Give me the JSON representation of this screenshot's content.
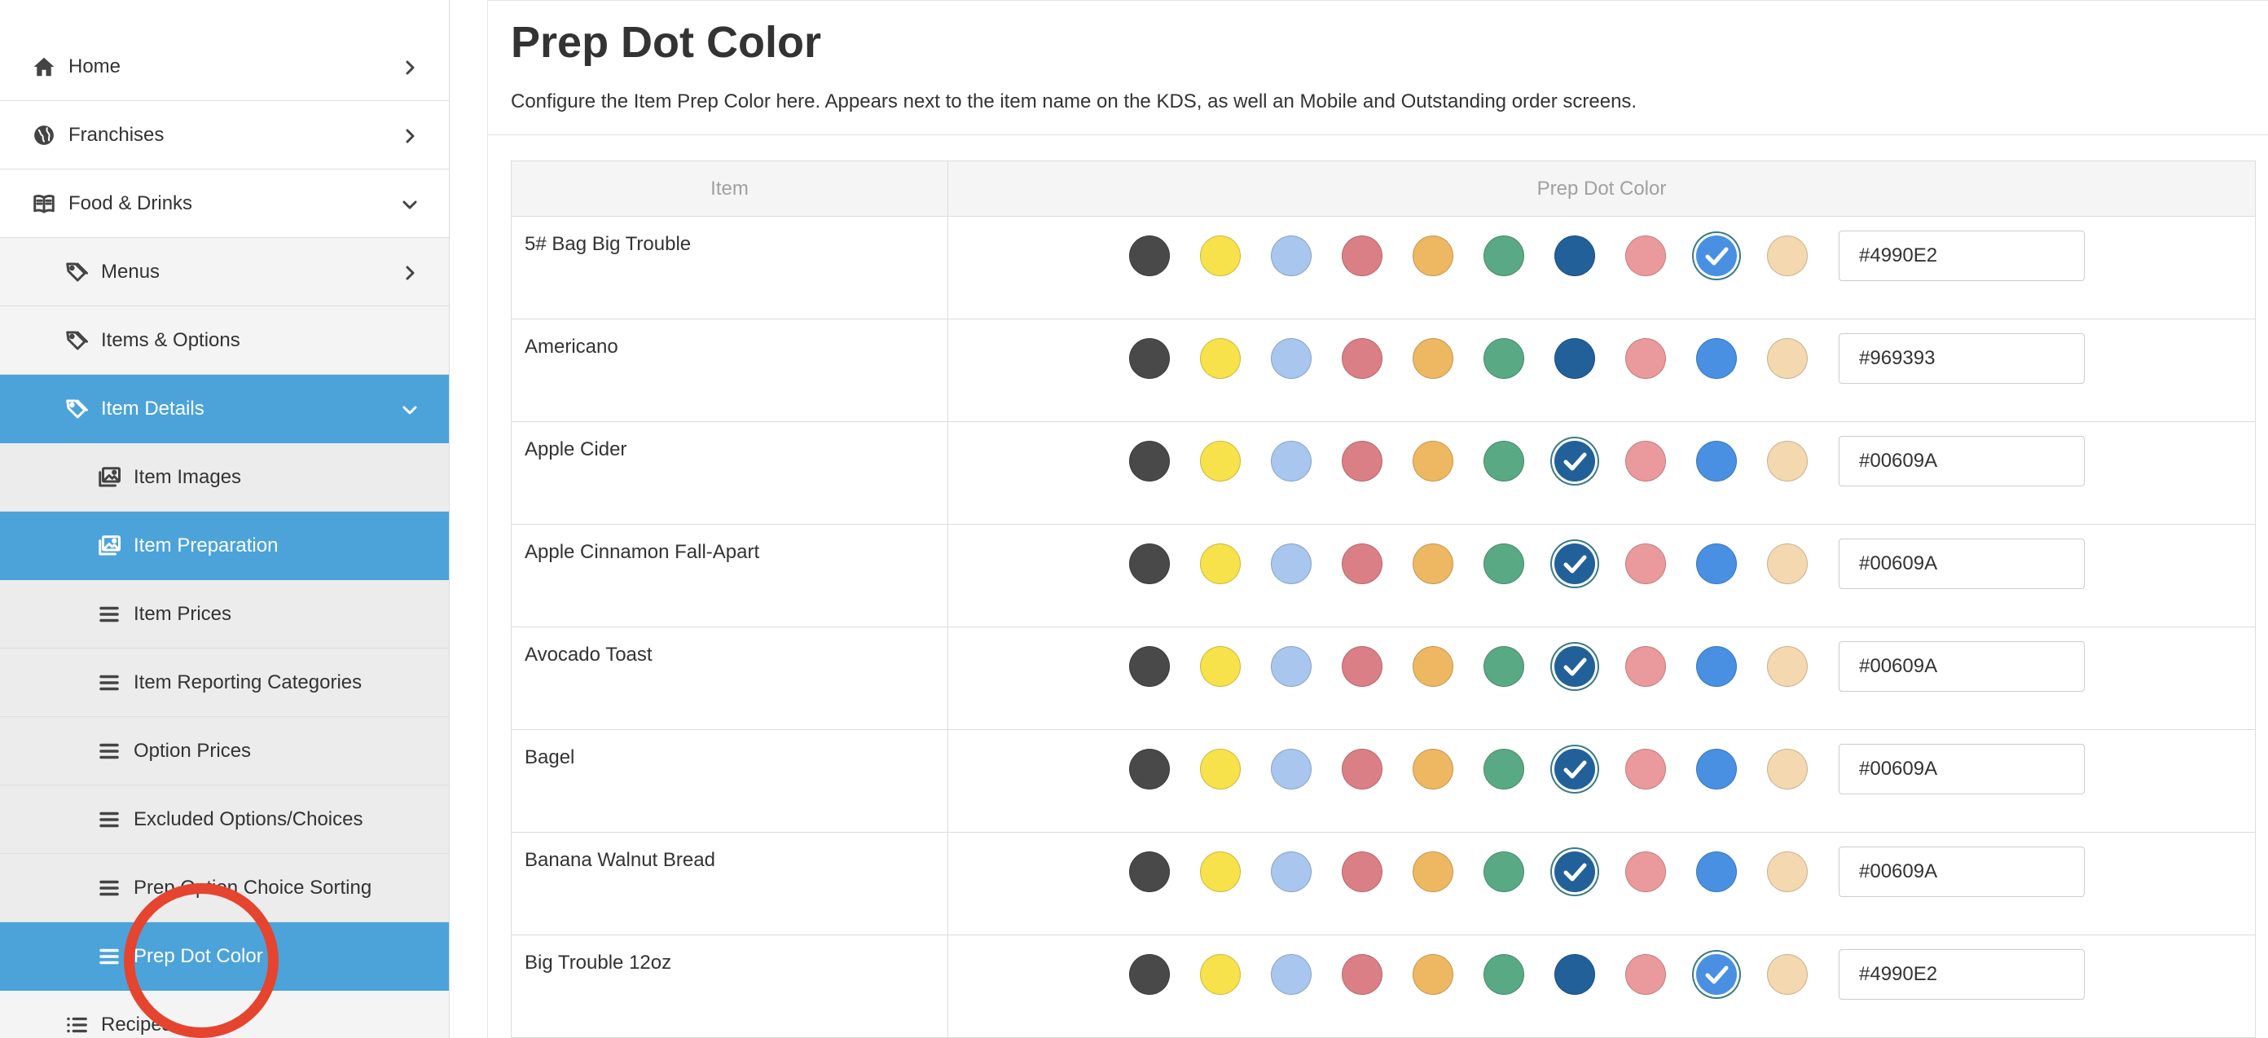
{
  "sidebar": {
    "items": [
      {
        "label": "Home",
        "level": 0,
        "icon": "home-icon",
        "chevron": "right",
        "active": false
      },
      {
        "label": "Franchises",
        "level": 0,
        "icon": "globe-icon",
        "chevron": "right",
        "active": false
      },
      {
        "label": "Food & Drinks",
        "level": 0,
        "icon": "book-icon",
        "chevron": "down",
        "active": false
      },
      {
        "label": "Menus",
        "level": 1,
        "icon": "tags-icon",
        "chevron": "right",
        "active": false
      },
      {
        "label": "Items & Options",
        "level": 1,
        "icon": "tags-icon",
        "chevron": "",
        "active": false
      },
      {
        "label": "Item Details",
        "level": 1,
        "icon": "tags-icon",
        "chevron": "down",
        "active": true
      },
      {
        "label": "Item Images",
        "level": 2,
        "icon": "images-icon",
        "chevron": "",
        "active": false
      },
      {
        "label": "Item Preparation",
        "level": 2,
        "icon": "images-icon",
        "chevron": "",
        "active": true
      },
      {
        "label": "Item Prices",
        "level": 2,
        "icon": "list-icon",
        "chevron": "",
        "active": false
      },
      {
        "label": "Item Reporting Categories",
        "level": 2,
        "icon": "list-icon",
        "chevron": "",
        "active": false
      },
      {
        "label": "Option Prices",
        "level": 2,
        "icon": "list-icon",
        "chevron": "",
        "active": false
      },
      {
        "label": "Excluded Options/Choices",
        "level": 2,
        "icon": "list-icon",
        "chevron": "",
        "active": false
      },
      {
        "label": "Prep Option Choice Sorting",
        "level": 2,
        "icon": "list-icon",
        "chevron": "",
        "active": false
      },
      {
        "label": "Prep Dot Color",
        "level": 2,
        "icon": "list-icon",
        "chevron": "",
        "active": true
      },
      {
        "label": "Recipes",
        "level": 1,
        "icon": "list-ul-icon",
        "chevron": "",
        "active": false
      }
    ]
  },
  "main": {
    "title": "Prep Dot Color",
    "description": "Configure the Item Prep Color here. Appears next to the item name on the KDS, as well an Mobile and Outstanding order screens.",
    "table": {
      "headers": {
        "item": "Item",
        "color": "Prep Dot Color"
      },
      "palette": [
        "#494949",
        "#F7E24B",
        "#A9C6EF",
        "#DB7F86",
        "#EEB863",
        "#59A985",
        "#22609A",
        "#EA9A9C",
        "#4990E2",
        "#F4D8AF"
      ],
      "rows": [
        {
          "item": "5# Bag Big Trouble",
          "value": "#4990E2",
          "selected_index": 8
        },
        {
          "item": "Americano",
          "value": "#969393",
          "selected_index": -1
        },
        {
          "item": "Apple Cider",
          "value": "#00609A",
          "selected_index": 6
        },
        {
          "item": "Apple Cinnamon Fall-Apart",
          "value": "#00609A",
          "selected_index": 6
        },
        {
          "item": "Avocado Toast",
          "value": "#00609A",
          "selected_index": 6
        },
        {
          "item": "Bagel",
          "value": "#00609A",
          "selected_index": 6
        },
        {
          "item": "Banana Walnut Bread",
          "value": "#00609A",
          "selected_index": 6
        },
        {
          "item": "Big Trouble 12oz",
          "value": "#4990E2",
          "selected_index": 8
        }
      ]
    }
  },
  "colors": {
    "accent": "#4BA3D9",
    "annotation": "#E5442F"
  }
}
